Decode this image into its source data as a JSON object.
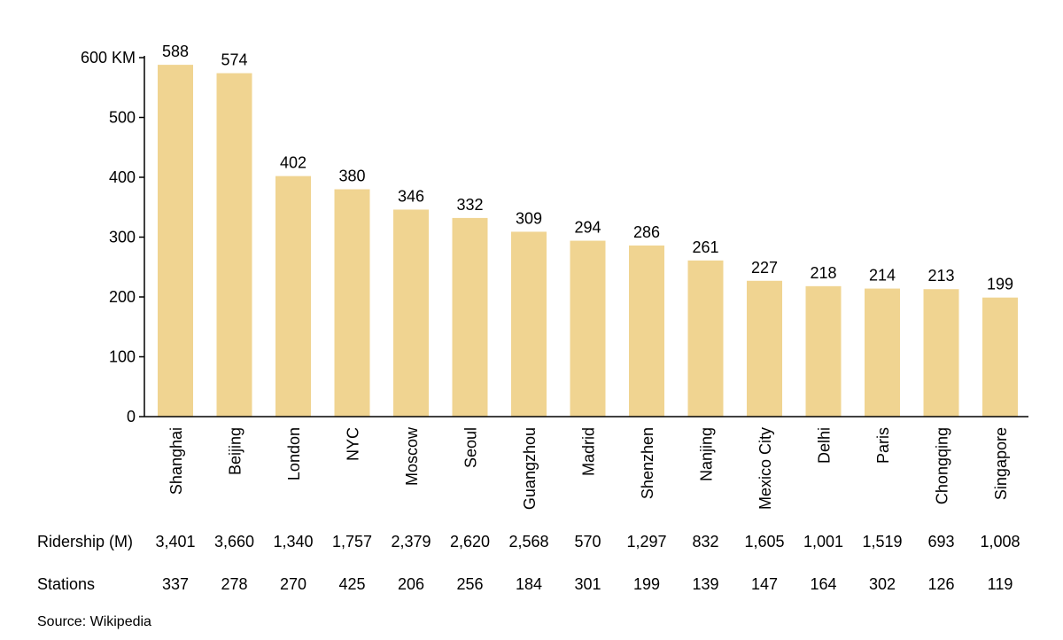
{
  "chart_data": {
    "type": "bar",
    "title": "",
    "xlabel": "",
    "ylabel": "",
    "ylim": [
      0,
      600
    ],
    "y_ticks": [
      {
        "value": 0,
        "label": "0"
      },
      {
        "value": 100,
        "label": "100"
      },
      {
        "value": 200,
        "label": "200"
      },
      {
        "value": 300,
        "label": "300"
      },
      {
        "value": 400,
        "label": "400"
      },
      {
        "value": 500,
        "label": "500"
      },
      {
        "value": 600,
        "label": "600 KM"
      }
    ],
    "categories": [
      "Shanghai",
      "Beijing",
      "London",
      "NYC",
      "Moscow",
      "Seoul",
      "Guangzhou",
      "Madrid",
      "Shenzhen",
      "Nanjing",
      "Mexico City",
      "Delhi",
      "Paris",
      "Chongqing",
      "Singapore"
    ],
    "values": [
      588,
      574,
      402,
      380,
      346,
      332,
      309,
      294,
      286,
      261,
      227,
      218,
      214,
      213,
      199
    ],
    "bar_color": "#f0d491",
    "grid": false,
    "legend": "none"
  },
  "table": {
    "rows": [
      {
        "label": "Ridership (M)",
        "values": [
          "3,401",
          "3,660",
          "1,340",
          "1,757",
          "2,379",
          "2,620",
          "2,568",
          "570",
          "1,297",
          "832",
          "1,605",
          "1,001",
          "1,519",
          "693",
          "1,008"
        ]
      },
      {
        "label": "Stations",
        "values": [
          "337",
          "278",
          "270",
          "425",
          "206",
          "256",
          "184",
          "301",
          "199",
          "139",
          "147",
          "164",
          "302",
          "126",
          "119"
        ]
      }
    ]
  },
  "source": "Source: Wikipedia"
}
